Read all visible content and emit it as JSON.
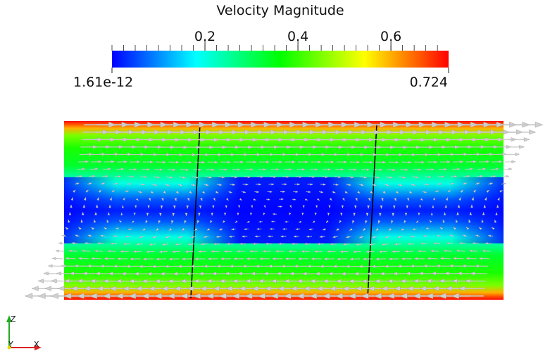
{
  "chart_data": {
    "type": "heatmap",
    "title": "Velocity Magnitude",
    "colorbar": {
      "min": 1.61e-12,
      "max": 0.724,
      "min_label": "1.61e-12",
      "max_label": "0.724",
      "ticks": [
        {
          "value": 0.2,
          "label": "0.2"
        },
        {
          "value": 0.4,
          "label": "0.4"
        },
        {
          "value": 0.6,
          "label": "0.6"
        }
      ],
      "colormap": "rainbow",
      "colors": [
        "#0000ff",
        "#00ffff",
        "#00ff00",
        "#ffff00",
        "#ff0000"
      ]
    },
    "field": {
      "profile_by_height": [
        {
          "frac": 0.0,
          "value": 0.72
        },
        {
          "frac": 0.04,
          "value": 0.6
        },
        {
          "frac": 0.08,
          "value": 0.45
        },
        {
          "frac": 0.15,
          "value": 0.38
        },
        {
          "frac": 0.25,
          "value": 0.33
        },
        {
          "frac": 0.35,
          "value": 0.2
        },
        {
          "frac": 0.44,
          "value": 0.06
        },
        {
          "frac": 0.5,
          "value": 0.02
        },
        {
          "frac": 0.56,
          "value": 0.06
        },
        {
          "frac": 0.65,
          "value": 0.2
        },
        {
          "frac": 0.75,
          "value": 0.33
        },
        {
          "frac": 0.85,
          "value": 0.38
        },
        {
          "frac": 0.92,
          "value": 0.45
        },
        {
          "frac": 0.96,
          "value": 0.6
        },
        {
          "frac": 1.0,
          "value": 0.72
        }
      ],
      "arrow_color": "#c8c8c8",
      "line_color": "#000000"
    },
    "orientation_axes": {
      "labels": [
        "Z",
        "Y",
        "X"
      ],
      "colors": {
        "z": "#22aa22",
        "y": "#dddd00",
        "x": "#dd2222"
      }
    }
  }
}
